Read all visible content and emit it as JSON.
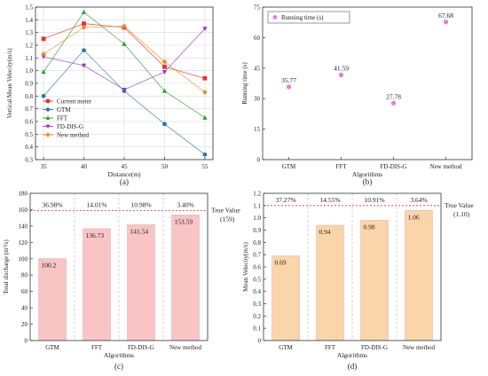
{
  "chart_data": [
    {
      "panel": "a",
      "caption": "(a)",
      "type": "line",
      "title": "",
      "xlabel": "Distance(m)",
      "ylabel": "Vertical Mean Velocity(m/s)",
      "x": [
        35,
        40,
        45,
        50,
        55
      ],
      "xticks": [
        "35",
        "40",
        "45",
        "50",
        "55"
      ],
      "xlim": [
        34,
        56
      ],
      "ylim": [
        0.3,
        1.5
      ],
      "yticks": [
        "0.3",
        "0.4",
        "0.5",
        "0.6",
        "0.7",
        "0.8",
        "0.9",
        "1.0",
        "1.1",
        "1.2",
        "1.3",
        "1.4",
        "1.5"
      ],
      "grid": true,
      "legend": "bottom-left",
      "series": [
        {
          "name": "Current meter",
          "color": "#e8312a",
          "marker": "square",
          "values": [
            1.25,
            1.37,
            1.34,
            1.03,
            0.94
          ]
        },
        {
          "name": "GTM",
          "color": "#2778b8",
          "marker": "circle",
          "values": [
            0.8,
            1.16,
            0.84,
            0.58,
            0.34
          ]
        },
        {
          "name": "FFT",
          "color": "#2ca02c",
          "marker": "triangle",
          "values": [
            0.99,
            1.46,
            1.21,
            0.84,
            0.63
          ]
        },
        {
          "name": "FD-DIS-G",
          "color": "#8e3fb8",
          "marker": "tri-down",
          "values": [
            1.11,
            1.04,
            0.85,
            0.99,
            1.33
          ]
        },
        {
          "name": "New method",
          "color": "#f08a24",
          "marker": "diamond",
          "values": [
            1.13,
            1.34,
            1.35,
            1.07,
            0.83
          ]
        }
      ]
    },
    {
      "panel": "b",
      "caption": "(b)",
      "type": "scatter",
      "title": "",
      "xlabel": "Algorithms",
      "ylabel": "Running time (s)",
      "categories": [
        "GTM",
        "FFT",
        "FD-DIS-G",
        "New method"
      ],
      "ylim": [
        0,
        75
      ],
      "yticks": [
        "0",
        "15",
        "30",
        "45",
        "60",
        "75"
      ],
      "legend": "top-left",
      "series": [
        {
          "name": "Running time (s)",
          "color": "#e879d6",
          "values": [
            35.77,
            41.59,
            27.78,
            67.68
          ],
          "labels": [
            "35.77",
            "41.59",
            "27.78",
            "67.68"
          ]
        }
      ]
    },
    {
      "panel": "c",
      "caption": "(c)",
      "type": "bar",
      "title": "",
      "xlabel": "Algorithms",
      "ylabel": "Total discharge (m³/s)",
      "categories": [
        "GTM",
        "FFT",
        "FD-DIS-G",
        "New method"
      ],
      "values": [
        100.2,
        136.73,
        141.54,
        153.59
      ],
      "value_labels": [
        "100.2",
        "136.73",
        "141.54",
        "153.59"
      ],
      "errors": [
        "36.98%",
        "14.01%",
        "10.98%",
        "3.40%"
      ],
      "reference_line": {
        "label": "True Value",
        "value_label": "(159)",
        "value": 159
      },
      "ylim": [
        0,
        180
      ],
      "yticks": [
        "0",
        "20",
        "40",
        "60",
        "80",
        "100",
        "120",
        "140",
        "160",
        "180"
      ],
      "bar_color": "#f9c4c4",
      "grid": true
    },
    {
      "panel": "d",
      "caption": "(d)",
      "type": "bar",
      "title": "",
      "xlabel": "Algorithms",
      "ylabel": "Mean Velocity(m/s)",
      "categories": [
        "GTM",
        "FFT",
        "FD-DIS-G",
        "New method"
      ],
      "values": [
        0.69,
        0.94,
        0.98,
        1.06
      ],
      "value_labels": [
        "0.69",
        "0.94",
        "0.98",
        "1.06"
      ],
      "errors": [
        "37.27%",
        "14.55%",
        "10.91%",
        "3.64%"
      ],
      "reference_line": {
        "label": "True Value",
        "value_label": "(1.10)",
        "value": 1.1
      },
      "ylim": [
        0,
        1.2
      ],
      "yticks": [
        "0",
        "0.1",
        "0.2",
        "0.3",
        "0.4",
        "0.5",
        "0.6",
        "0.7",
        "0.8",
        "0.9",
        "1.0",
        "1.1",
        "1.2"
      ],
      "bar_color": "#fbd5aa",
      "grid": true
    }
  ]
}
